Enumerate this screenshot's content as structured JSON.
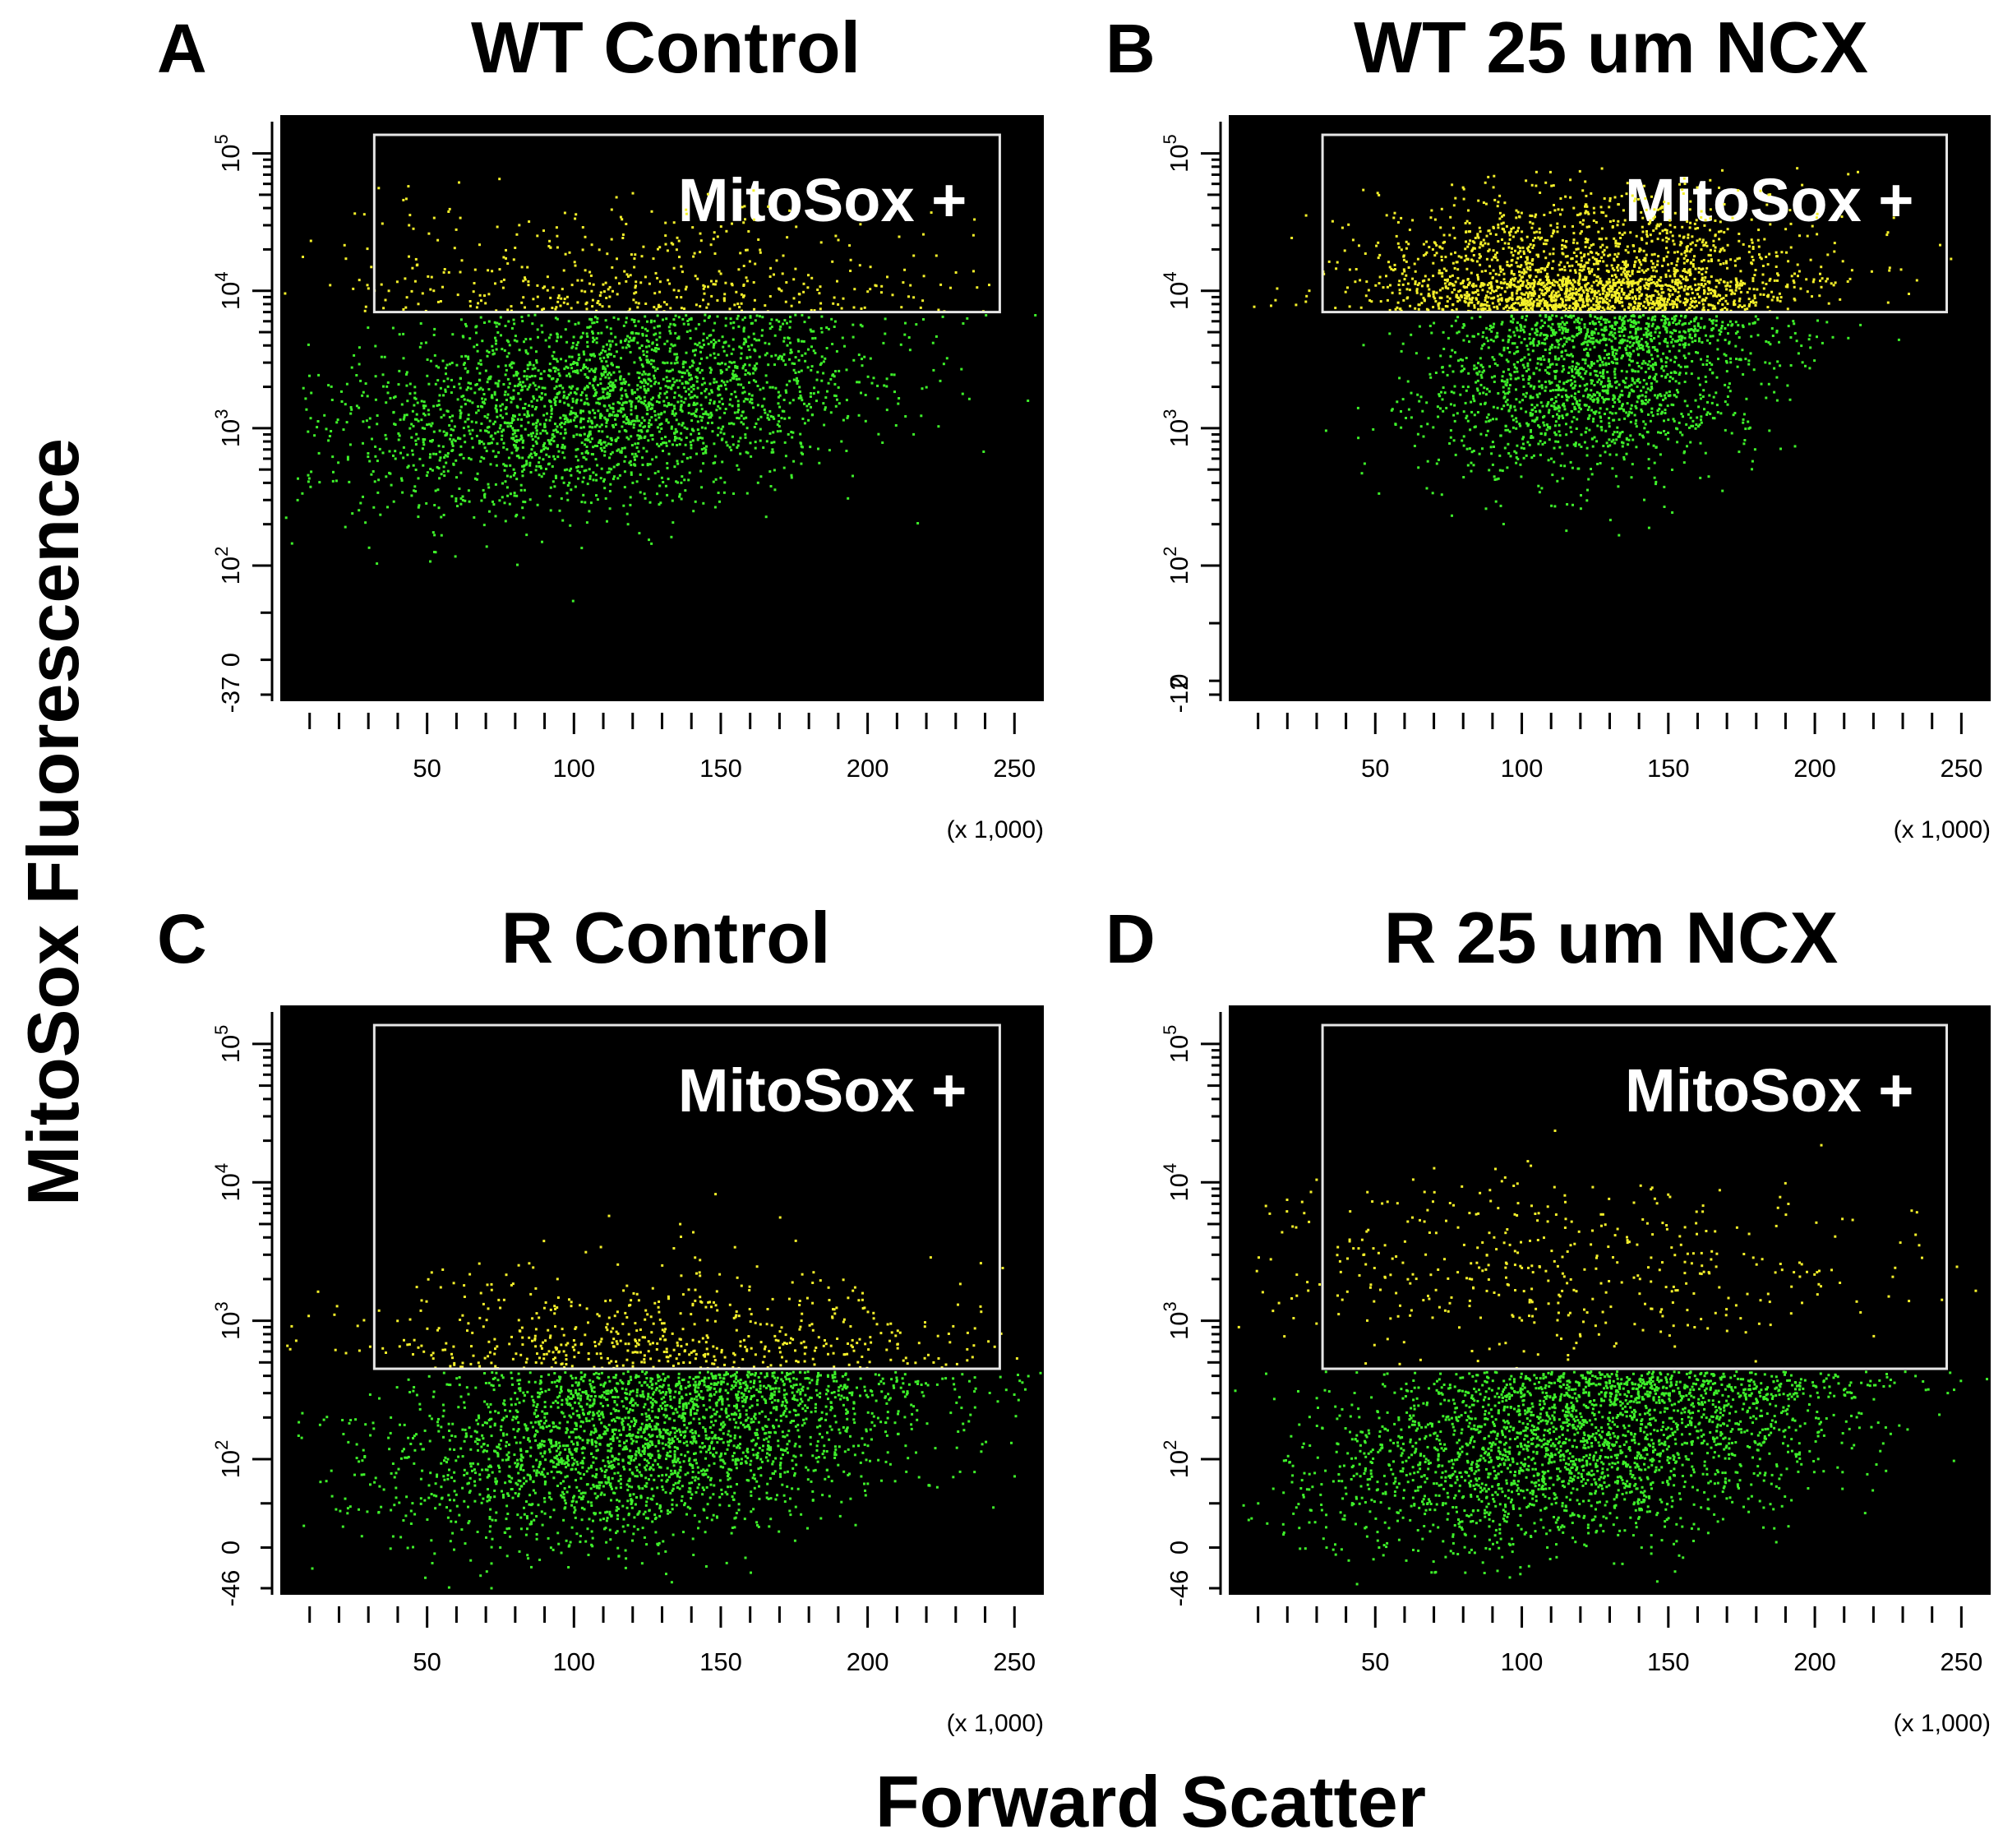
{
  "figure": {
    "xlabel": "Forward Scatter",
    "ylabel": "MitoSox Fluorescence"
  },
  "colors": {
    "plot_background": "#000000",
    "negative_events": "#3ef02a",
    "positive_events": "#f4f02a",
    "gate_outline": "#e6e6e6"
  },
  "chart_data": [
    {
      "type": "scatter",
      "panel": "A",
      "title": "WT Control",
      "gate_label": "MitoSox +",
      "gate": {
        "x": [
          32,
          245
        ],
        "y_min": 7000,
        "y_max": 150000
      },
      "x_ticks": [
        50,
        100,
        150,
        200,
        250
      ],
      "x_scale_note": "(x 1,000)",
      "xlim": [
        0,
        260
      ],
      "y_scale": "log",
      "y_ticks": [
        {
          "value": -37,
          "label": "-37"
        },
        {
          "value": 0,
          "label": "0"
        },
        {
          "value": 100,
          "label": "10",
          "exp": "2"
        },
        {
          "value": 1000,
          "label": "10",
          "exp": "3"
        },
        {
          "value": 10000,
          "label": "10",
          "exp": "4"
        },
        {
          "value": 100000,
          "label": "10",
          "exp": "5"
        }
      ],
      "populations": [
        {
          "class": "negative",
          "center": {
            "x": 110,
            "y": 1500
          },
          "count": 2600
        },
        {
          "class": "positive",
          "center": {
            "x": 120,
            "y": 11000
          },
          "count": 450
        }
      ]
    },
    {
      "type": "scatter",
      "panel": "B",
      "title": "WT 25 um NCX",
      "gate_label": "MitoSox +",
      "gate": {
        "x": [
          32,
          245
        ],
        "y_min": 7000,
        "y_max": 150000
      },
      "x_ticks": [
        50,
        100,
        150,
        200,
        250
      ],
      "x_scale_note": "(x 1,000)",
      "xlim": [
        0,
        260
      ],
      "y_scale": "log",
      "y_ticks": [
        {
          "value": -12,
          "label": "-12"
        },
        {
          "value": 0,
          "label": "0"
        },
        {
          "value": 100,
          "label": "10",
          "exp": "2"
        },
        {
          "value": 1000,
          "label": "10",
          "exp": "3"
        },
        {
          "value": 10000,
          "label": "10",
          "exp": "4"
        },
        {
          "value": 100000,
          "label": "10",
          "exp": "5"
        }
      ],
      "populations": [
        {
          "class": "negative",
          "center": {
            "x": 125,
            "y": 2500
          },
          "count": 1800
        },
        {
          "class": "positive",
          "center": {
            "x": 120,
            "y": 11000
          },
          "count": 2200
        }
      ]
    },
    {
      "type": "scatter",
      "panel": "C",
      "title": "R Control",
      "gate_label": "MitoSox +",
      "gate": {
        "x": [
          32,
          245
        ],
        "y_min": 450,
        "y_max": 150000
      },
      "x_ticks": [
        50,
        100,
        150,
        200,
        250
      ],
      "x_scale_note": "(x 1,000)",
      "xlim": [
        0,
        260
      ],
      "y_scale": "log",
      "y_ticks": [
        {
          "value": -46,
          "label": "-46"
        },
        {
          "value": 0,
          "label": "0"
        },
        {
          "value": 100,
          "label": "10",
          "exp": "2"
        },
        {
          "value": 1000,
          "label": "10",
          "exp": "3"
        },
        {
          "value": 10000,
          "label": "10",
          "exp": "4"
        },
        {
          "value": 100000,
          "label": "10",
          "exp": "5"
        }
      ],
      "populations": [
        {
          "class": "negative",
          "center": {
            "x": 125,
            "y": 150
          },
          "count": 2800
        },
        {
          "class": "positive",
          "center": {
            "x": 130,
            "y": 700
          },
          "count": 600
        }
      ]
    },
    {
      "type": "scatter",
      "panel": "D",
      "title": "R 25 um NCX",
      "gate_label": "MitoSox +",
      "gate": {
        "x": [
          32,
          245
        ],
        "y_min": 450,
        "y_max": 150000
      },
      "x_ticks": [
        50,
        100,
        150,
        200,
        250
      ],
      "x_scale_note": "(x 1,000)",
      "xlim": [
        0,
        260
      ],
      "y_scale": "log",
      "y_ticks": [
        {
          "value": -46,
          "label": "-46"
        },
        {
          "value": 0,
          "label": "0"
        },
        {
          "value": 100,
          "label": "10",
          "exp": "2"
        },
        {
          "value": 1000,
          "label": "10",
          "exp": "3"
        },
        {
          "value": 10000,
          "label": "10",
          "exp": "4"
        },
        {
          "value": 100000,
          "label": "10",
          "exp": "5"
        }
      ],
      "populations": [
        {
          "class": "negative",
          "center": {
            "x": 120,
            "y": 150
          },
          "count": 2800
        },
        {
          "class": "positive",
          "center": {
            "x": 110,
            "y": 2500
          },
          "count": 450
        }
      ]
    }
  ]
}
